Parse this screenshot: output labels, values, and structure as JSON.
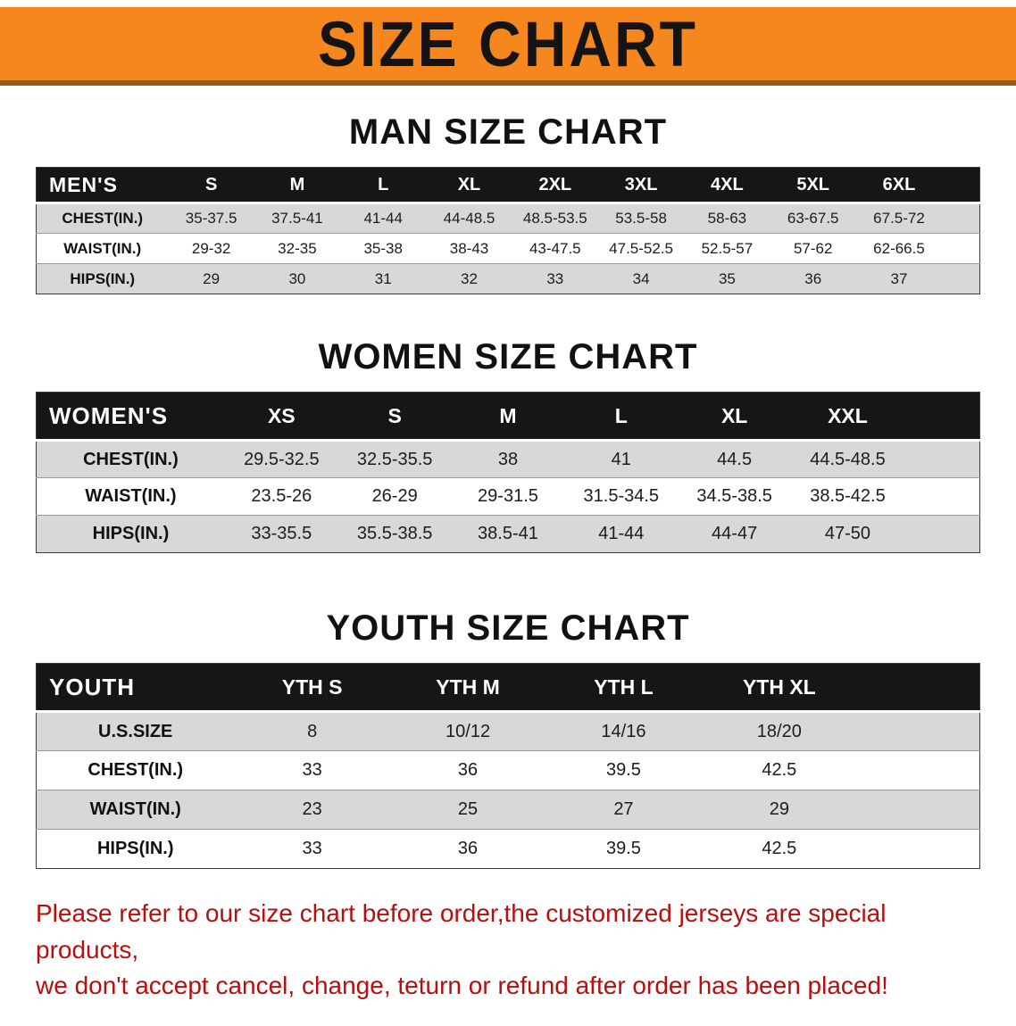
{
  "banner": {
    "title": "SIZE CHART"
  },
  "colors": {
    "banner_bg": "#f6871f",
    "banner_edge": "#9c5a1a",
    "table_header_bg": "#161616",
    "row_stripe": "#d8d8d8",
    "disclaimer_red": "#b50f0f"
  },
  "sections": [
    {
      "heading": "MAN SIZE CHART",
      "table": {
        "id": "mens",
        "label": "MEN'S",
        "columns": [
          "S",
          "M",
          "L",
          "XL",
          "2XL",
          "3XL",
          "4XL",
          "5XL",
          "6XL"
        ],
        "rows": [
          {
            "label": "CHEST(IN.)",
            "values": [
              "35-37.5",
              "37.5-41",
              "41-44",
              "44-48.5",
              "48.5-53.5",
              "53.5-58",
              "58-63",
              "63-67.5",
              "67.5-72"
            ]
          },
          {
            "label": "WAIST(IN.)",
            "values": [
              "29-32",
              "32-35",
              "35-38",
              "38-43",
              "43-47.5",
              "47.5-52.5",
              "52.5-57",
              "57-62",
              "62-66.5"
            ]
          },
          {
            "label": "HIPS(IN.)",
            "values": [
              "29",
              "30",
              "31",
              "32",
              "33",
              "34",
              "35",
              "36",
              "37"
            ]
          }
        ]
      }
    },
    {
      "heading": "WOMEN SIZE CHART",
      "table": {
        "id": "womens",
        "label": "WOMEN'S",
        "columns": [
          "XS",
          "S",
          "M",
          "L",
          "XL",
          "XXL"
        ],
        "rows": [
          {
            "label": "CHEST(IN.)",
            "values": [
              "29.5-32.5",
              "32.5-35.5",
              "38",
              "41",
              "44.5",
              "44.5-48.5"
            ]
          },
          {
            "label": "WAIST(IN.)",
            "values": [
              "23.5-26",
              "26-29",
              "29-31.5",
              "31.5-34.5",
              "34.5-38.5",
              "38.5-42.5"
            ]
          },
          {
            "label": "HIPS(IN.)",
            "values": [
              "33-35.5",
              "35.5-38.5",
              "38.5-41",
              "41-44",
              "44-47",
              "47-50"
            ]
          }
        ]
      }
    },
    {
      "heading": "YOUTH SIZE CHART",
      "table": {
        "id": "youth",
        "label": "YOUTH",
        "columns": [
          "YTH S",
          "YTH M",
          "YTH L",
          "YTH XL"
        ],
        "rows": [
          {
            "label": "U.S.SIZE",
            "values": [
              "8",
              "10/12",
              "14/16",
              "18/20"
            ]
          },
          {
            "label": "CHEST(IN.)",
            "values": [
              "33",
              "36",
              "39.5",
              "42.5"
            ]
          },
          {
            "label": "WAIST(IN.)",
            "values": [
              "23",
              "25",
              "27",
              "29"
            ]
          },
          {
            "label": "HIPS(IN.)",
            "values": [
              "33",
              "36",
              "39.5",
              "42.5"
            ]
          }
        ]
      }
    }
  ],
  "disclaimer": {
    "line1": "Please refer to our size chart before order,the customized jerseys are special products,",
    "line2": "we don't accept cancel, change, teturn or refund after order has been placed!"
  }
}
